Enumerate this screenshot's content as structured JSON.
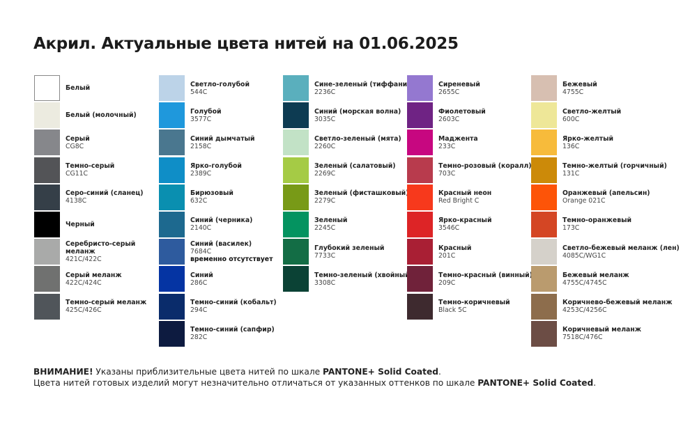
{
  "title": "Акрил. Актуальные цвета нитей на 01.06.2025",
  "columns": [
    [
      {
        "name": "Белый",
        "code": "",
        "color": "#ffffff"
      },
      {
        "name": "Белый (молочный)",
        "code": "",
        "color": "#ecebe0"
      },
      {
        "name": "Серый",
        "code": "CG8C",
        "color": "#86878b"
      },
      {
        "name": "Темно-серый",
        "code": "CG11C",
        "color": "#535457"
      },
      {
        "name": "Серо-синий (сланец)",
        "code": "4138C",
        "color": "#353f48"
      },
      {
        "name": "Черный",
        "code": "",
        "color": "#000000"
      },
      {
        "name": "Серебристо-серый меланж",
        "code": "421C/422C",
        "color": "#a9aaa9"
      },
      {
        "name": "Серый меланж",
        "code": "422C/424C",
        "color": "#707170"
      },
      {
        "name": "Темно-серый меланж",
        "code": "425C/426C",
        "color": "#50555a"
      }
    ],
    [
      {
        "name": "Светло-голубой",
        "code": "544C",
        "color": "#bcd3e8"
      },
      {
        "name": "Голубой",
        "code": "3577C",
        "color": "#1f98dc"
      },
      {
        "name": "Синий дымчатый",
        "code": "2158C",
        "color": "#4a778f"
      },
      {
        "name": "Ярко-голубой",
        "code": "2389C",
        "color": "#0f8ec7"
      },
      {
        "name": "Бирюзовый",
        "code": "632C",
        "color": "#0a8fb0"
      },
      {
        "name": "Синий (черника)",
        "code": "2140C",
        "color": "#1d698f"
      },
      {
        "name": "Синий (василек)",
        "code": "7684C",
        "note": "временно отсутствует",
        "color": "#2e5b9e"
      },
      {
        "name": "Синий",
        "code": "286C",
        "color": "#0534a3"
      },
      {
        "name": "Темно-синий (кобальт)",
        "code": "294C",
        "color": "#0a2c6b"
      },
      {
        "name": "Темно-синий (сапфир)",
        "code": "282C",
        "color": "#0d1b40"
      }
    ],
    [
      {
        "name": "Сине-зеленый (тиффани)",
        "code": "2236C",
        "color": "#5aafbd"
      },
      {
        "name": "Синий (морская волна)",
        "code": "3035C",
        "color": "#0d3b52"
      },
      {
        "name": "Светло-зеленый (мята)",
        "code": "2260C",
        "color": "#c2e2c6"
      },
      {
        "name": "Зеленый (салатовый)",
        "code": "2269C",
        "color": "#a5cb45"
      },
      {
        "name": "Зеленый (фисташковый)",
        "code": "2279C",
        "color": "#789a17"
      },
      {
        "name": "Зеленый",
        "code": "2245C",
        "color": "#049360"
      },
      {
        "name": "Глубокий зеленый",
        "code": "7733C",
        "color": "#136d45"
      },
      {
        "name": "Темно-зеленый (хвойный)",
        "code": "3308C",
        "color": "#0b4235"
      }
    ],
    [
      {
        "name": "Сиреневый",
        "code": "2655C",
        "color": "#9478d0"
      },
      {
        "name": "Фиолетовый",
        "code": "2603C",
        "color": "#6f2384"
      },
      {
        "name": "Маджента",
        "code": "233C",
        "color": "#c70780"
      },
      {
        "name": "Темно-розовый (коралл)",
        "code": "703C",
        "color": "#b83b4d"
      },
      {
        "name": "Красный неон",
        "code": "Red Bright C",
        "color": "#f7391c"
      },
      {
        "name": "Ярко-красный",
        "code": "3546C",
        "color": "#dd2426"
      },
      {
        "name": "Красный",
        "code": "201C",
        "color": "#a91f34"
      },
      {
        "name": "Темно-красный (винный)",
        "code": "209C",
        "color": "#70223a"
      },
      {
        "name": "Темно-коричневый",
        "code": "Black 5C",
        "color": "#3e2a2f"
      }
    ],
    [
      {
        "name": "Бежевый",
        "code": "4755C",
        "color": "#d7bfb1"
      },
      {
        "name": "Светло-желтый",
        "code": "600C",
        "color": "#eee798"
      },
      {
        "name": "Ярко-желтый",
        "code": "136C",
        "color": "#f7bb3b"
      },
      {
        "name": "Темно-желтый (горчичный)",
        "code": "131C",
        "color": "#cc8a09"
      },
      {
        "name": "Оранжевый (апельсин)",
        "code": "Orange 021C",
        "color": "#fd5408"
      },
      {
        "name": "Темно-оранжевый",
        "code": "173C",
        "color": "#d44624"
      },
      {
        "name": "Светло-бежевый меланж (лен)",
        "code": "4085C/WG1C",
        "color": "#d5d1ca"
      },
      {
        "name": "Бежевый меланж",
        "code": "4755C/4745C",
        "color": "#ba9b6e"
      },
      {
        "name": "Коричнево-бежевый меланж",
        "code": "4253C/4256C",
        "color": "#8d6d4c"
      },
      {
        "name": "Коричневый меланж",
        "code": "7518C/476C",
        "color": "#6c4d45"
      }
    ]
  ],
  "footer": {
    "warning_label": "ВНИМАНИЕ!",
    "line1_text": " Указаны приблизительные цвета нитей по шкале ",
    "scale": "PANTONE+ Solid Coated",
    "line1_end": ".",
    "line2_text": "Цвета нитей готовых изделий могут незначительно отличаться от указанных оттенков по шкале ",
    "line2_end": "."
  }
}
